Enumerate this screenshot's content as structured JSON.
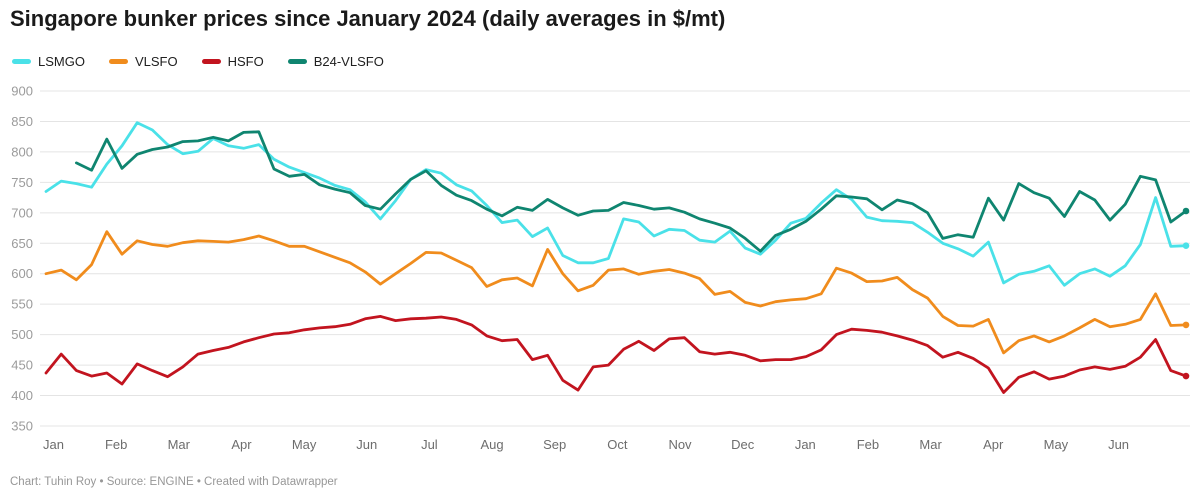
{
  "header": {
    "title": "Singapore bunker prices since January 2024 (daily averages in $/mt)"
  },
  "legend": {
    "items": [
      {
        "label": "LSMGO",
        "color": "#4ae1e8"
      },
      {
        "label": "VLSFO",
        "color": "#f08c1d"
      },
      {
        "label": "HSFO",
        "color": "#c2141f"
      },
      {
        "label": "B24-VLSFO",
        "color": "#0f8570"
      }
    ]
  },
  "footer": {
    "text": "Chart: Tuhin Roy • Source: ENGINE • Created with Datawrapper"
  },
  "chart_data": {
    "type": "line",
    "title": "Singapore bunker prices since January 2024 (daily averages in $/mt)",
    "xlabel": "",
    "ylabel": "$/mt",
    "ylim": [
      350,
      900
    ],
    "yticks": [
      350,
      400,
      450,
      500,
      550,
      600,
      650,
      700,
      750,
      800,
      850,
      900
    ],
    "x_months": [
      "Jan",
      "Feb",
      "Mar",
      "Apr",
      "May",
      "Jun",
      "Jul",
      "Aug",
      "Sep",
      "Oct",
      "Nov",
      "Dec",
      "Jan",
      "Feb",
      "Mar",
      "Apr",
      "May",
      "Jun"
    ],
    "grid": true,
    "legend_position": "top-left",
    "colors": {
      "grid": "#e4e4e4",
      "y_tick_label": "#9b9b9b",
      "x_tick_label": "#6d6d6d"
    },
    "series": [
      {
        "name": "LSMGO",
        "color": "#4ae1e8",
        "values": [
          735,
          752,
          748,
          742,
          780,
          810,
          848,
          836,
          812,
          797,
          801,
          822,
          810,
          806,
          812,
          788,
          775,
          766,
          757,
          745,
          738,
          718,
          690,
          720,
          755,
          771,
          765,
          746,
          736,
          712,
          684,
          688,
          661,
          675,
          630,
          618,
          618,
          625,
          690,
          685,
          662,
          673,
          671,
          655,
          652,
          670,
          642,
          632,
          655,
          683,
          691,
          716,
          738,
          722,
          693,
          687,
          686,
          684,
          668,
          650,
          641,
          629,
          652,
          585,
          599,
          604,
          613,
          581,
          600,
          608,
          596,
          613,
          648,
          725,
          645,
          646
        ]
      },
      {
        "name": "VLSFO",
        "color": "#f08c1d",
        "values": [
          600,
          606,
          590,
          615,
          669,
          632,
          654,
          648,
          645,
          651,
          654,
          653,
          652,
          656,
          662,
          654,
          645,
          645,
          636,
          627,
          618,
          603,
          583,
          600,
          617,
          635,
          634,
          622,
          610,
          579,
          590,
          593,
          580,
          640,
          600,
          572,
          581,
          606,
          608,
          599,
          604,
          607,
          601,
          592,
          566,
          571,
          553,
          547,
          554,
          557,
          559,
          567,
          609,
          601,
          587,
          588,
          594,
          574,
          560,
          530,
          515,
          514,
          525,
          470,
          490,
          498,
          488,
          498,
          511,
          525,
          513,
          517,
          525,
          567,
          515,
          516
        ]
      },
      {
        "name": "HSFO",
        "color": "#c2141f",
        "values": [
          437,
          468,
          441,
          432,
          437,
          419,
          452,
          441,
          431,
          447,
          468,
          474,
          479,
          488,
          495,
          501,
          503,
          508,
          511,
          513,
          517,
          526,
          530,
          523,
          526,
          527,
          529,
          525,
          516,
          498,
          490,
          492,
          459,
          466,
          425,
          409,
          447,
          450,
          476,
          489,
          474,
          493,
          495,
          472,
          468,
          471,
          466,
          457,
          459,
          459,
          464,
          475,
          500,
          509,
          507,
          504,
          498,
          491,
          482,
          463,
          471,
          461,
          445,
          405,
          430,
          439,
          427,
          432,
          442,
          447,
          443,
          448,
          463,
          492,
          441,
          432
        ]
      },
      {
        "name": "B24-VLSFO",
        "color": "#0f8570",
        "values": [
          null,
          null,
          782,
          770,
          821,
          773,
          796,
          804,
          808,
          817,
          818,
          824,
          818,
          832,
          833,
          772,
          760,
          763,
          746,
          739,
          733,
          712,
          706,
          731,
          755,
          769,
          745,
          729,
          720,
          706,
          695,
          709,
          704,
          722,
          708,
          696,
          703,
          704,
          717,
          712,
          706,
          708,
          701,
          690,
          683,
          675,
          658,
          637,
          663,
          673,
          686,
          706,
          728,
          726,
          723,
          705,
          721,
          715,
          700,
          658,
          664,
          660,
          724,
          688,
          748,
          733,
          724,
          694,
          735,
          721,
          688,
          714,
          760,
          754,
          685,
          703
        ]
      }
    ]
  }
}
